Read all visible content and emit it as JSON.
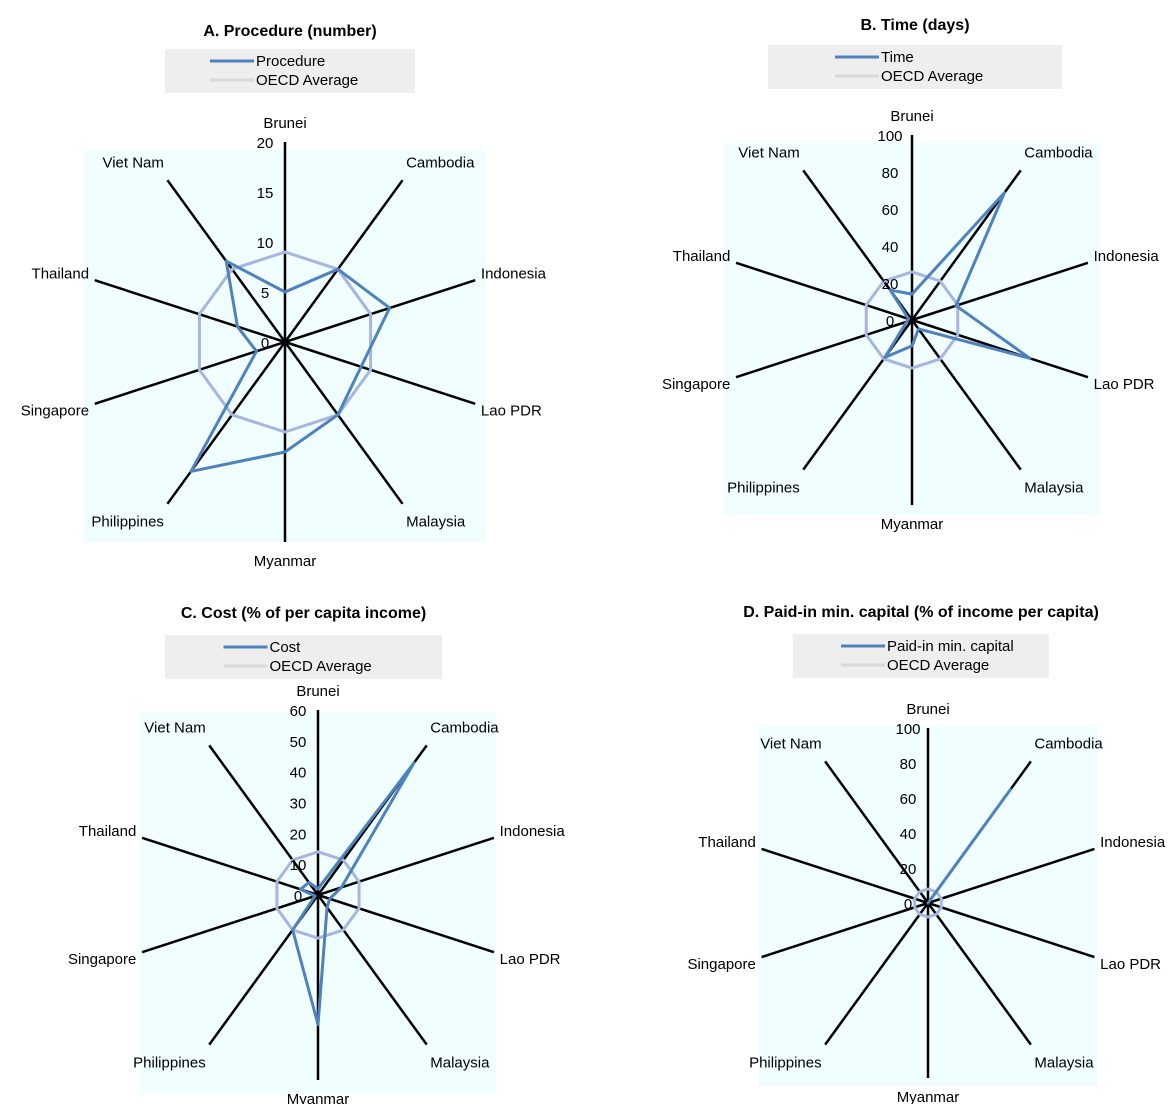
{
  "colors": {
    "series": "#4f81bd",
    "oecd": "#a6b6de",
    "legend_oecd_swatch": "#d9d9d9",
    "plot_bg": "#f0feff",
    "legend_bg": "#eeeeee",
    "spokes": "#000000"
  },
  "chart_data": [
    {
      "type": "radar",
      "title": "A. Procedure (number)",
      "legend": {
        "placement": "top",
        "entries": [
          "Procedure",
          "OECD  Average"
        ]
      },
      "categories": [
        "Brunei",
        "Cambodia",
        "Indonesia",
        "Lao PDR",
        "Malaysia",
        "Myanmar",
        "Philippines",
        "Singapore",
        "Thailand",
        "Viet Nam"
      ],
      "rlim": [
        0,
        20
      ],
      "ticks": [
        0,
        5,
        10,
        15,
        20
      ],
      "tick_labels": [
        "0",
        "5",
        "10",
        "15",
        "20"
      ],
      "series": [
        {
          "name": "Procedure",
          "values": [
            5,
            9,
            11,
            8,
            9,
            11,
            16,
            3,
            5,
            10
          ]
        },
        {
          "name": "OECD  Average",
          "values": [
            9,
            9,
            9,
            9,
            9,
            9,
            9,
            9,
            9,
            9
          ]
        }
      ]
    },
    {
      "type": "radar",
      "title": "B. Time (days)",
      "legend": {
        "placement": "top",
        "entries": [
          "Time",
          "OECD  Average"
        ]
      },
      "categories": [
        "Brunei",
        "Cambodia",
        "Indonesia",
        "Lao PDR",
        "Malaysia",
        "Myanmar",
        "Philippines",
        "Singapore",
        "Thailand",
        "Viet Nam"
      ],
      "rlim": [
        0,
        100
      ],
      "ticks": [
        0,
        20,
        40,
        60,
        80,
        100
      ],
      "tick_labels": [
        "0",
        "20",
        "40",
        "60",
        "80",
        "100"
      ],
      "series": [
        {
          "name": "Time",
          "values": [
            14,
            85,
            25,
            67,
            6,
            14,
            25,
            3,
            2,
            20
          ]
        },
        {
          "name": "OECD  Average",
          "values": [
            26,
            26,
            26,
            26,
            26,
            26,
            26,
            26,
            26,
            26
          ]
        }
      ]
    },
    {
      "type": "radar",
      "title": "C. Cost (% of per capita income)",
      "legend": {
        "placement": "top",
        "entries": [
          "Cost",
          "OECD  Average"
        ]
      },
      "categories": [
        "Brunei",
        "Cambodia",
        "Indonesia",
        "Lao PDR",
        "Malaysia",
        "Myanmar",
        "Philippines",
        "Singapore",
        "Thailand",
        "Viet Nam"
      ],
      "rlim": [
        0,
        60
      ],
      "ticks": [
        0,
        10,
        20,
        30,
        40,
        50,
        60
      ],
      "tick_labels": [
        "0",
        "10",
        "20",
        "30",
        "40",
        "50",
        "60"
      ],
      "series": [
        {
          "name": "Cost",
          "values": [
            2,
            53,
            8,
            4,
            5,
            42,
            14,
            1,
            6,
            5
          ]
        },
        {
          "name": "OECD  Average",
          "values": [
            14,
            14,
            14,
            14,
            14,
            14,
            14,
            14,
            14,
            14
          ]
        }
      ]
    },
    {
      "type": "radar",
      "title": "D. Paid-in min. capital (% of income per capita)",
      "legend": {
        "placement": "top",
        "entries": [
          "Paid-in min. capital",
          "OECD  Average"
        ]
      },
      "categories": [
        "Brunei",
        "Cambodia",
        "Indonesia",
        "Lao PDR",
        "Malaysia",
        "Myanmar",
        "Philippines",
        "Singapore",
        "Thailand",
        "Viet Nam"
      ],
      "rlim": [
        0,
        100
      ],
      "ticks": [
        0,
        20,
        40,
        60,
        80,
        100
      ],
      "tick_labels": [
        "0",
        "20",
        "40",
        "60",
        "80",
        "100"
      ],
      "series": [
        {
          "name": "Paid-in min. capital",
          "values": [
            0,
            80,
            0,
            0,
            0,
            0,
            0,
            0,
            0,
            0
          ]
        },
        {
          "name": "OECD  Average",
          "values": [
            8,
            8,
            8,
            8,
            8,
            8,
            8,
            8,
            8,
            8
          ]
        }
      ]
    }
  ]
}
